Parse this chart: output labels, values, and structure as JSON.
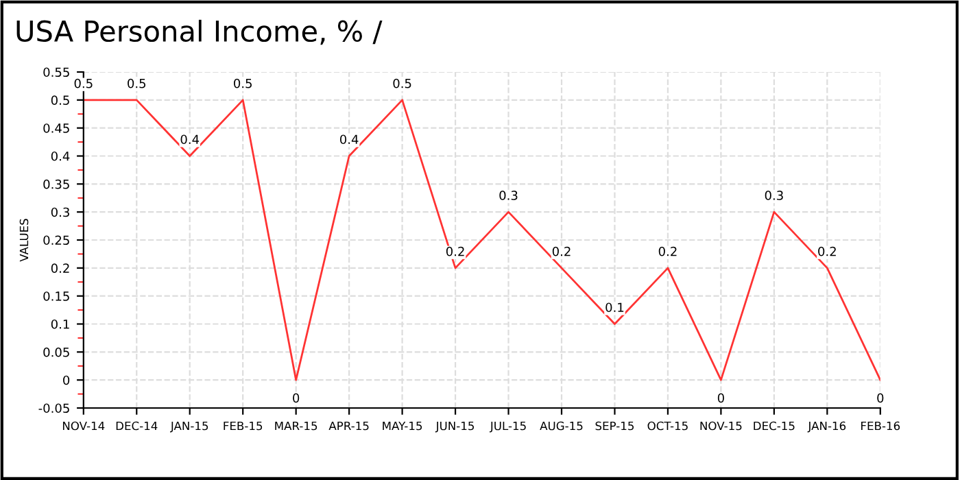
{
  "chart_data": {
    "type": "line",
    "title": "USA Personal Income, % /",
    "ylabel": "VALUES",
    "categories": [
      "NOV-14",
      "DEC-14",
      "JAN-15",
      "FEB-15",
      "MAR-15",
      "APR-15",
      "MAY-15",
      "JUN-15",
      "JUL-15",
      "AUG-15",
      "SEP-15",
      "OCT-15",
      "NOV-15",
      "DEC-15",
      "JAN-16",
      "FEB-16"
    ],
    "series": [
      {
        "color": "#ff3333",
        "values": [
          0.5,
          0.5,
          0.4,
          0.5,
          0,
          0.4,
          0.5,
          0.2,
          0.3,
          0.2,
          0.1,
          0.2,
          0,
          0.3,
          0.2,
          0
        ]
      }
    ],
    "ylim": [
      -0.05,
      0.55
    ],
    "yticks": [
      -0.05,
      0,
      0.05,
      0.1,
      0.15,
      0.2,
      0.25,
      0.3,
      0.35,
      0.4,
      0.45,
      0.5,
      0.55
    ],
    "grid": true,
    "data_labels": true,
    "marker": "none",
    "line_style": "solid"
  }
}
